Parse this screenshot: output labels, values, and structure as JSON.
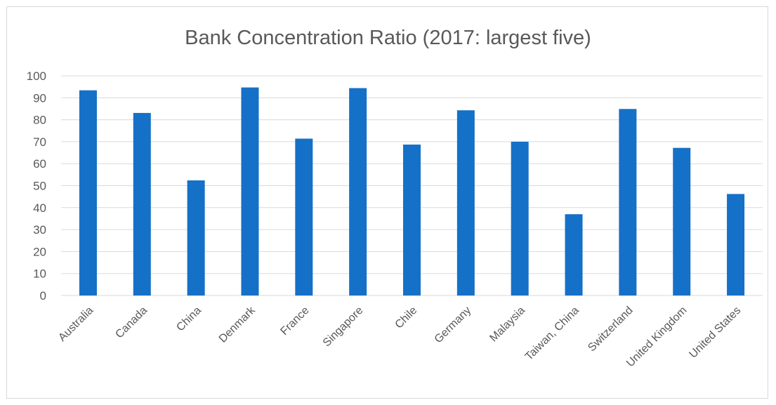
{
  "chart_data": {
    "type": "bar",
    "title": "Bank Concentration Ratio (2017: largest five)",
    "xlabel": "",
    "ylabel": "",
    "categories": [
      "Australia",
      "Canada",
      "China",
      "Denmark",
      "France",
      "Singapore",
      "Chile",
      "Germany",
      "Malaysia",
      "Taiwan, China",
      "Switzerland",
      "United Kingdom",
      "United States"
    ],
    "values": [
      93.4,
      83.1,
      52.4,
      94.7,
      71.4,
      94.4,
      68.7,
      84.3,
      70.0,
      37.0,
      84.9,
      67.2,
      46.2
    ],
    "ylim": [
      0,
      100
    ],
    "yticks": [
      "0",
      "10",
      "20",
      "30",
      "40",
      "50",
      "60",
      "70",
      "80",
      "90",
      "100"
    ],
    "grid": true,
    "legend": "none",
    "colors": {
      "bar": "#1570c7",
      "grid": "#d9d9d9",
      "text": "#595959"
    }
  }
}
